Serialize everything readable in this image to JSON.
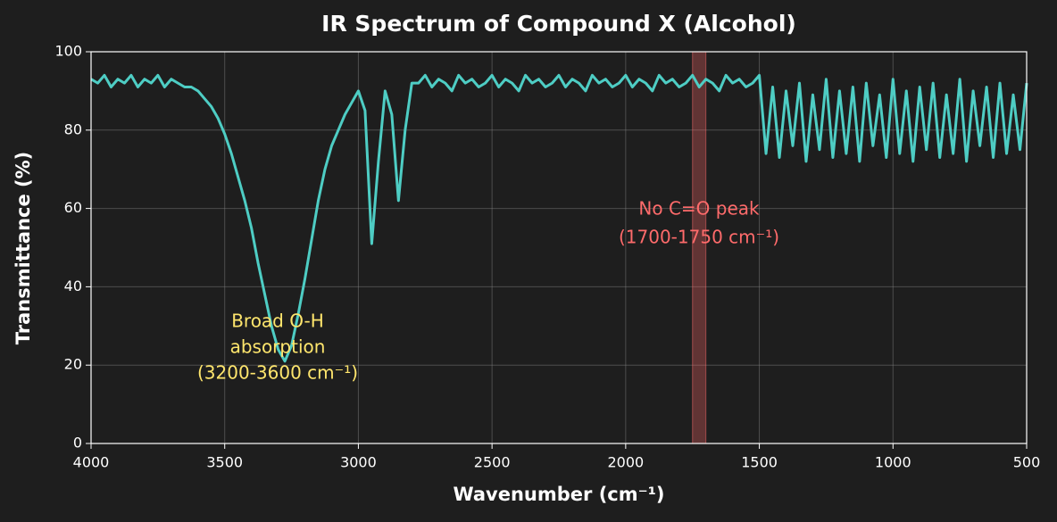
{
  "chart_data": {
    "type": "line",
    "title": "IR Spectrum of Compound X (Alcohol)",
    "x_label": "Wavenumber (cm⁻¹)",
    "y_label": "Transmittance (%)",
    "x": [
      4000,
      3975,
      3950,
      3925,
      3900,
      3875,
      3850,
      3825,
      3800,
      3775,
      3750,
      3725,
      3700,
      3675,
      3650,
      3625,
      3600,
      3575,
      3550,
      3525,
      3500,
      3475,
      3450,
      3425,
      3400,
      3375,
      3350,
      3325,
      3300,
      3275,
      3250,
      3225,
      3200,
      3175,
      3150,
      3125,
      3100,
      3075,
      3050,
      3025,
      3000,
      2975,
      2950,
      2925,
      2900,
      2875,
      2850,
      2825,
      2800,
      2775,
      2750,
      2725,
      2700,
      2675,
      2650,
      2625,
      2600,
      2575,
      2550,
      2525,
      2500,
      2475,
      2450,
      2425,
      2400,
      2375,
      2350,
      2325,
      2300,
      2275,
      2250,
      2225,
      2200,
      2175,
      2150,
      2125,
      2100,
      2075,
      2050,
      2025,
      2000,
      1975,
      1950,
      1925,
      1900,
      1875,
      1850,
      1825,
      1800,
      1775,
      1750,
      1725,
      1700,
      1675,
      1650,
      1625,
      1600,
      1575,
      1550,
      1525,
      1500,
      1475,
      1450,
      1425,
      1400,
      1375,
      1350,
      1325,
      1300,
      1275,
      1250,
      1225,
      1200,
      1175,
      1150,
      1125,
      1100,
      1075,
      1050,
      1025,
      1000,
      975,
      950,
      925,
      900,
      875,
      850,
      825,
      800,
      775,
      750,
      725,
      700,
      675,
      650,
      625,
      600,
      575,
      550,
      525,
      500
    ],
    "series": [
      {
        "color": "#4ecdc4",
        "values": [
          93,
          92,
          94,
          91,
          93,
          92,
          94,
          91,
          93,
          92,
          94,
          91,
          93,
          92,
          91,
          91,
          90,
          88,
          86,
          83,
          79,
          74,
          68,
          62,
          55,
          46,
          38,
          30,
          24,
          21,
          25,
          33,
          42,
          52,
          62,
          70,
          76,
          80,
          84,
          87,
          90,
          85,
          51,
          72,
          90,
          84,
          62,
          80,
          92,
          92,
          94,
          91,
          93,
          92,
          90,
          94,
          92,
          93,
          91,
          92,
          94,
          91,
          93,
          92,
          90,
          94,
          92,
          93,
          91,
          92,
          94,
          91,
          93,
          92,
          90,
          94,
          92,
          93,
          91,
          92,
          94,
          91,
          93,
          92,
          90,
          94,
          92,
          93,
          91,
          92,
          94,
          91,
          93,
          92,
          90,
          94,
          92,
          93,
          91,
          92,
          94,
          74,
          91,
          73,
          90,
          76,
          92,
          72,
          89,
          75,
          93,
          73,
          90,
          74,
          91,
          72,
          92,
          76,
          89,
          73,
          93,
          74,
          90,
          72,
          91,
          75,
          92,
          73,
          89,
          74,
          93,
          72,
          90,
          76,
          91,
          73,
          92,
          74,
          89,
          75,
          92
        ]
      }
    ],
    "xlim": [
      4000,
      500
    ],
    "xticks": [
      4000,
      3500,
      3000,
      2500,
      2000,
      1500,
      1000,
      500
    ],
    "ylim": [
      0,
      100
    ],
    "yticks": [
      0,
      20,
      40,
      60,
      80,
      100
    ],
    "grid": true,
    "highlight": {
      "x": [
        1750,
        1700
      ],
      "color": "#ff6b6b"
    },
    "annotations": [
      {
        "lines": [
          "Broad O-H",
          "absorption",
          "(3200-3600 cm⁻¹)"
        ],
        "color": "#ffe66d"
      },
      {
        "lines": [
          "No C=O peak",
          "(1700-1750 cm⁻¹)"
        ],
        "color": "#ff6b6b"
      }
    ]
  }
}
